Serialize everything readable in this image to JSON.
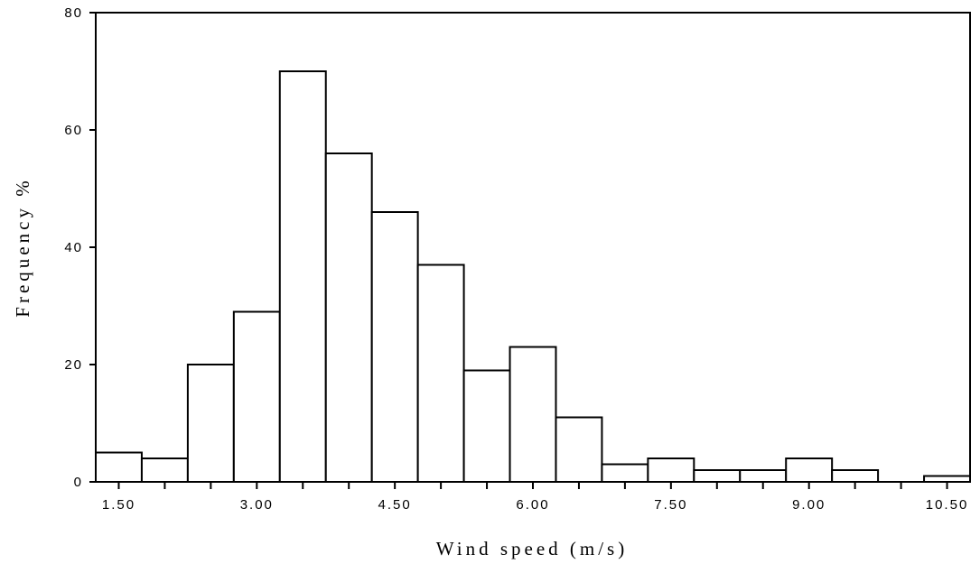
{
  "chart_data": {
    "type": "bar",
    "xlabel": "Wind speed (m/s)",
    "ylabel": "Frequency %",
    "bin_width": 0.5,
    "bins": [
      {
        "x_start": 1.25,
        "value": 5
      },
      {
        "x_start": 1.75,
        "value": 4
      },
      {
        "x_start": 2.25,
        "value": 20
      },
      {
        "x_start": 2.75,
        "value": 29
      },
      {
        "x_start": 3.25,
        "value": 70
      },
      {
        "x_start": 3.75,
        "value": 56
      },
      {
        "x_start": 4.25,
        "value": 46
      },
      {
        "x_start": 4.75,
        "value": 37
      },
      {
        "x_start": 5.25,
        "value": 19
      },
      {
        "x_start": 5.75,
        "value": 23
      },
      {
        "x_start": 6.25,
        "value": 11
      },
      {
        "x_start": 6.75,
        "value": 3
      },
      {
        "x_start": 7.25,
        "value": 4
      },
      {
        "x_start": 7.75,
        "value": 2
      },
      {
        "x_start": 8.25,
        "value": 2
      },
      {
        "x_start": 8.75,
        "value": 4
      },
      {
        "x_start": 9.25,
        "value": 2
      },
      {
        "x_start": 9.75,
        "value": 0
      },
      {
        "x_start": 10.25,
        "value": 1
      }
    ],
    "xlim": [
      1.25,
      10.75
    ],
    "ylim": [
      0,
      80
    ],
    "x_ticks": [
      {
        "value": 1.5,
        "label": "1.50"
      },
      {
        "value": 3.0,
        "label": "3.00"
      },
      {
        "value": 4.5,
        "label": "4.50"
      },
      {
        "value": 6.0,
        "label": "6.00"
      },
      {
        "value": 7.5,
        "label": "7.50"
      },
      {
        "value": 9.0,
        "label": "9.00"
      },
      {
        "value": 10.5,
        "label": "10.50"
      }
    ],
    "x_minor_ticks": [
      1.5,
      2.0,
      2.5,
      3.0,
      3.5,
      4.0,
      4.5,
      5.0,
      5.5,
      6.0,
      6.5,
      7.0,
      7.5,
      8.0,
      8.5,
      9.0,
      9.5,
      10.0,
      10.5
    ],
    "y_ticks": [
      {
        "value": 0,
        "label": "0"
      },
      {
        "value": 20,
        "label": "20"
      },
      {
        "value": 40,
        "label": "40"
      },
      {
        "value": 60,
        "label": "60"
      },
      {
        "value": 80,
        "label": "80"
      }
    ],
    "grid": false,
    "legend": "none"
  }
}
